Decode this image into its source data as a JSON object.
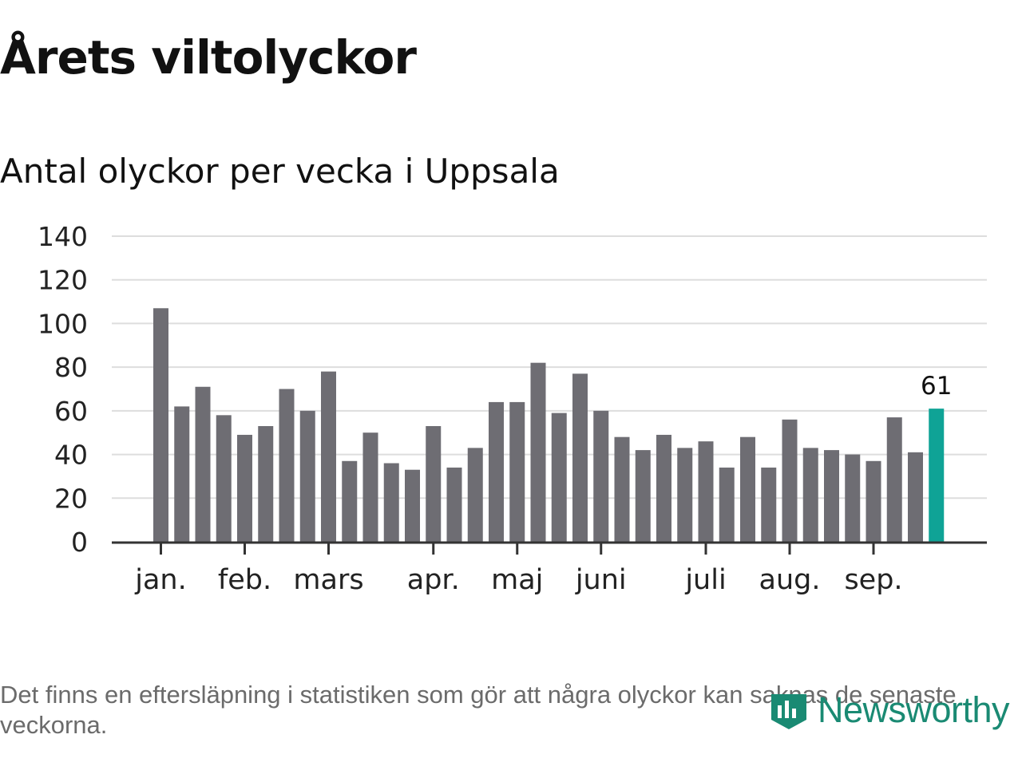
{
  "title": "Årets viltolyckor",
  "subtitle": "Antal olyckor per vecka i Uppsala",
  "footnote": "Det finns en eftersläpning i statistiken som gör att några olyckor kan saknas de senaste veckorna.",
  "brand": "Newsworthy",
  "colors": {
    "bar": "#6e6d73",
    "highlight": "#0fa396",
    "grid": "#dddddd",
    "axis": "#333333",
    "brand": "#1a8a73"
  },
  "chart_data": {
    "type": "bar",
    "title": "Antal olyckor per vecka i Uppsala",
    "xlabel": "",
    "ylabel": "",
    "ylim": [
      0,
      140
    ],
    "yticks": [
      "0",
      "20",
      "40",
      "60",
      "80",
      "100",
      "120",
      "140"
    ],
    "grid": true,
    "values": [
      107,
      62,
      71,
      58,
      49,
      53,
      70,
      60,
      78,
      37,
      50,
      36,
      33,
      53,
      34,
      43,
      64,
      64,
      82,
      59,
      77,
      60,
      48,
      42,
      49,
      43,
      46,
      34,
      48,
      34,
      56,
      43,
      42,
      40,
      37,
      57,
      41,
      61
    ],
    "highlight_index": 37,
    "highlight_label": "61",
    "months": [
      {
        "label": "jan.",
        "week": 0
      },
      {
        "label": "feb.",
        "week": 4
      },
      {
        "label": "mars",
        "week": 8
      },
      {
        "label": "apr.",
        "week": 13
      },
      {
        "label": "maj",
        "week": 17
      },
      {
        "label": "juni",
        "week": 21
      },
      {
        "label": "juli",
        "week": 26
      },
      {
        "label": "aug.",
        "week": 30
      },
      {
        "label": "sep.",
        "week": 34
      }
    ]
  }
}
